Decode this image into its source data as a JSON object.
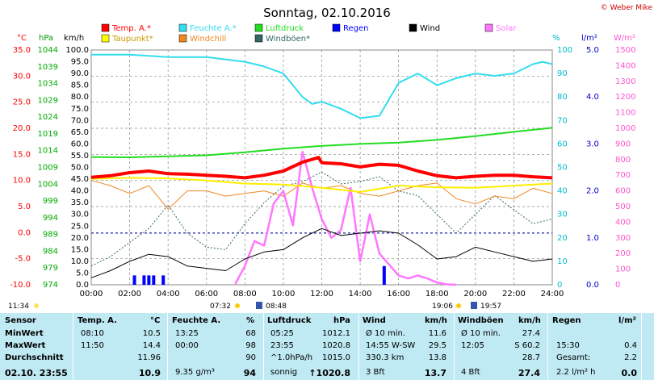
{
  "title": "Sonntag, 02.10.2016",
  "copyright": "© Weber Mike",
  "units": {
    "temp": "°C",
    "hpa": "hPa",
    "kmh": "km/h",
    "pct": "%",
    "rain": "l/m²",
    "solar": "W/m²"
  },
  "legend": [
    {
      "label": "Temp. A.*",
      "color": "#ff0000"
    },
    {
      "label": "Feuchte A.*",
      "color": "#33ddee"
    },
    {
      "label": "Luftdruck",
      "color": "#22dd22"
    },
    {
      "label": "Regen",
      "color": "#0000ff"
    },
    {
      "label": "Wind",
      "color": "#000000"
    },
    {
      "label": "Solar",
      "color": "#ff77ff"
    },
    {
      "label": "Taupunkt*",
      "color": "#ffff00"
    },
    {
      "label": "Windchill",
      "color": "#ee8822"
    },
    {
      "label": "Windböen*",
      "color": "#336666"
    }
  ],
  "axes": {
    "temp_ticks": [
      "35.0",
      "30.0",
      "25.0",
      "20.0",
      "15.0",
      "10.0",
      "5.0",
      "0.0",
      "-5.0",
      "-10.0"
    ],
    "hpa_ticks": [
      "1044",
      "1039",
      "1034",
      "1029",
      "1024",
      "1019",
      "1014",
      "1009",
      "1004",
      "999",
      "994",
      "989",
      "984",
      "979",
      "974"
    ],
    "kmh_ticks": [
      "100.0",
      "95.0",
      "90.0",
      "85.0",
      "80.0",
      "75.0",
      "70.0",
      "65.0",
      "60.0",
      "55.0",
      "50.0",
      "45.0",
      "40.0",
      "35.0",
      "30.0",
      "25.0",
      "20.0",
      "15.0",
      "10.0",
      "5.0",
      "0.0"
    ],
    "pct_ticks": [
      "100",
      "90",
      "80",
      "70",
      "60",
      "50",
      "40",
      "30",
      "20",
      "10",
      "0"
    ],
    "rain_ticks": [
      "5.0",
      "4.0",
      "3.0",
      "2.0",
      "1.0",
      "0.0"
    ],
    "solar_ticks": [
      "1500",
      "1400",
      "1300",
      "1200",
      "1100",
      "1000",
      "900",
      "800",
      "700",
      "600",
      "500",
      "400",
      "300",
      "200",
      "100",
      "0"
    ],
    "time_ticks": [
      "00:00",
      "02:00",
      "04:00",
      "06:00",
      "08:00",
      "10:00",
      "12:00",
      "14:00",
      "16:00",
      "18:00",
      "20:00",
      "22:00",
      "24:00"
    ]
  },
  "sun": {
    "moonrise": "11:34",
    "sunrise": "07:32",
    "moonset": "08:48",
    "sunset": "19:06",
    "twilight_end": "19:57"
  },
  "chart_data": {
    "type": "line",
    "x_unit": "hour",
    "series": [
      {
        "name": "Temp. A.*",
        "axis": "°C",
        "x": [
          0,
          1,
          2,
          3,
          4,
          5,
          6,
          7,
          8,
          9,
          10,
          11,
          11.83,
          12,
          13,
          14,
          15,
          16,
          17,
          18,
          19,
          20,
          21,
          22,
          23,
          24
        ],
        "values": [
          10.6,
          10.9,
          11.5,
          11.8,
          11.3,
          11.2,
          11.0,
          10.8,
          10.5,
          11.0,
          11.8,
          13.5,
          14.4,
          13.4,
          13.2,
          12.6,
          13.1,
          12.9,
          11.8,
          10.9,
          10.5,
          10.8,
          11.0,
          11.0,
          10.7,
          10.5
        ]
      },
      {
        "name": "Taupunkt*",
        "axis": "°C",
        "x": [
          0,
          2,
          4,
          6,
          8,
          10,
          12,
          14,
          16,
          18,
          20,
          22,
          24
        ],
        "values": [
          10.3,
          10.5,
          10.4,
          10.0,
          9.4,
          9.2,
          8.6,
          7.8,
          9.0,
          8.7,
          8.6,
          9.0,
          9.4
        ]
      },
      {
        "name": "Windchill",
        "axis": "°C",
        "x": [
          0,
          1,
          2,
          3,
          4,
          5,
          6,
          7,
          8,
          9,
          10,
          11,
          12,
          13,
          14,
          15,
          16,
          17,
          18,
          19,
          20,
          21,
          22,
          23,
          24
        ],
        "values": [
          10.0,
          9.0,
          7.5,
          9.0,
          4.5,
          8.0,
          8.0,
          7.0,
          7.5,
          8.0,
          7.0,
          9.5,
          8.5,
          9.0,
          7.5,
          7.0,
          8.0,
          9.0,
          9.5,
          6.5,
          5.5,
          7.0,
          6.5,
          8.5,
          7.5
        ]
      },
      {
        "name": "Feuchte A.*",
        "axis": "%",
        "x": [
          0,
          2,
          4,
          6,
          8,
          9,
          10,
          11,
          11.5,
          12,
          13,
          14,
          15,
          16,
          17,
          18,
          19,
          20,
          21,
          22,
          23,
          23.5,
          24
        ],
        "values": [
          98,
          98,
          97,
          97,
          95,
          93,
          90,
          80,
          77,
          78,
          75,
          71,
          72,
          86,
          90,
          85,
          88,
          90,
          89,
          90,
          94,
          95,
          94
        ]
      },
      {
        "name": "Luftdruck",
        "axis": "hPa",
        "x": [
          0,
          2,
          4,
          6,
          8,
          10,
          12,
          14,
          16,
          18,
          20,
          22,
          24
        ],
        "values": [
          1012.1,
          1012.0,
          1012.3,
          1012.6,
          1013.5,
          1014.6,
          1015.4,
          1016.0,
          1016.4,
          1017.2,
          1018.3,
          1019.6,
          1020.8
        ]
      },
      {
        "name": "Wind",
        "axis": "km/h",
        "x": [
          0,
          1,
          2,
          3,
          4,
          5,
          6,
          7,
          8,
          9,
          10,
          11,
          12,
          13,
          14,
          15,
          16,
          17,
          18,
          19,
          20,
          21,
          22,
          23,
          24
        ],
        "values": [
          3,
          6,
          10,
          13,
          12,
          8,
          7,
          6,
          11,
          14,
          15,
          20,
          24,
          21,
          22,
          23,
          22,
          17,
          11,
          12,
          16,
          14,
          12,
          10,
          11
        ]
      },
      {
        "name": "Windböen*",
        "axis": "km/h",
        "x": [
          0,
          1,
          2,
          3,
          4,
          5,
          6,
          7,
          8,
          9,
          10,
          11,
          12,
          13,
          14,
          15,
          16,
          17,
          18,
          19,
          20,
          21,
          22,
          23,
          24
        ],
        "values": [
          8,
          12,
          18,
          24,
          34,
          22,
          16,
          15,
          26,
          35,
          42,
          44,
          48,
          43,
          44,
          46,
          40,
          38,
          30,
          22,
          30,
          38,
          32,
          26,
          28
        ]
      },
      {
        "name": "Solar",
        "axis": "W/m²",
        "x": [
          7.5,
          8,
          8.5,
          9,
          9.5,
          10,
          10.5,
          11,
          11.5,
          12,
          12.5,
          13,
          13.5,
          14,
          14.5,
          15,
          15.5,
          16,
          16.5,
          17,
          17.5,
          18,
          18.5,
          19
        ],
        "values": [
          5,
          120,
          280,
          250,
          520,
          600,
          380,
          850,
          620,
          420,
          300,
          350,
          620,
          150,
          450,
          200,
          130,
          60,
          40,
          60,
          40,
          15,
          3,
          0
        ]
      },
      {
        "name": "Regen",
        "axis": "l/m²",
        "type": "bar",
        "x": [
          2.25,
          2.75,
          3.0,
          3.25,
          3.75,
          15.25
        ],
        "values": [
          0.2,
          0.2,
          0.2,
          0.2,
          0.2,
          0.4
        ]
      }
    ]
  },
  "stats": {
    "headers": {
      "sensor": "Sensor",
      "temp": "Temp. A.",
      "temp_unit": "°C",
      "hum": "Feuchte A.",
      "hum_unit": "%",
      "press": "Luftdruck",
      "press_unit": "hPa",
      "wind": "Wind",
      "wind_unit": "km/h",
      "gust": "Windböen",
      "gust_unit": "km/h",
      "rain": "Regen",
      "rain_unit": "l/m²"
    },
    "rows": [
      {
        "label": "MinWert",
        "temp_t": "08:10",
        "temp_v": "10.5",
        "hum_t": "13:25",
        "hum_v": "68",
        "press_t": "05:25",
        "press_v": "1012.1",
        "wind_t": "Ø 10 min.",
        "wind_v": "11.6",
        "gust_t": "Ø 10 min.",
        "gust_v": "27.4",
        "rain_t": "",
        "rain_v": ""
      },
      {
        "label": "MaxWert",
        "temp_t": "11:50",
        "temp_v": "14.4",
        "hum_t": "00:00",
        "hum_v": "98",
        "press_t": "23:55",
        "press_v": "1020.8",
        "wind_t": "14:55   W-SW",
        "wind_v": "29.5",
        "gust_t": "12:05",
        "gust_v": "S 60.2",
        "rain_t": "15:30",
        "rain_v": "0.4"
      },
      {
        "label": "Durchschnitt",
        "temp_t": "",
        "temp_v": "11.96",
        "hum_t": "",
        "hum_v": "90",
        "press_t": "^1.0hPa/h",
        "press_v": "1015.0",
        "wind_t": "330.3 km",
        "wind_v": "13.8",
        "gust_t": "",
        "gust_v": "28.7",
        "rain_t": "Gesamt:",
        "rain_v": "2.2"
      },
      {
        "label": "02.10. 23:55",
        "temp_t": "",
        "temp_v": "10.9",
        "hum_t": "9.35 g/m³",
        "hum_v": "94",
        "press_t": "sonnig",
        "press_v": "↑1020.8",
        "wind_t": "3 Bft",
        "wind_v": "13.7",
        "gust_t": "4 Bft",
        "gust_v": "27.4",
        "rain_t": "2.2 l/m² h",
        "rain_v": "0.0"
      }
    ]
  }
}
